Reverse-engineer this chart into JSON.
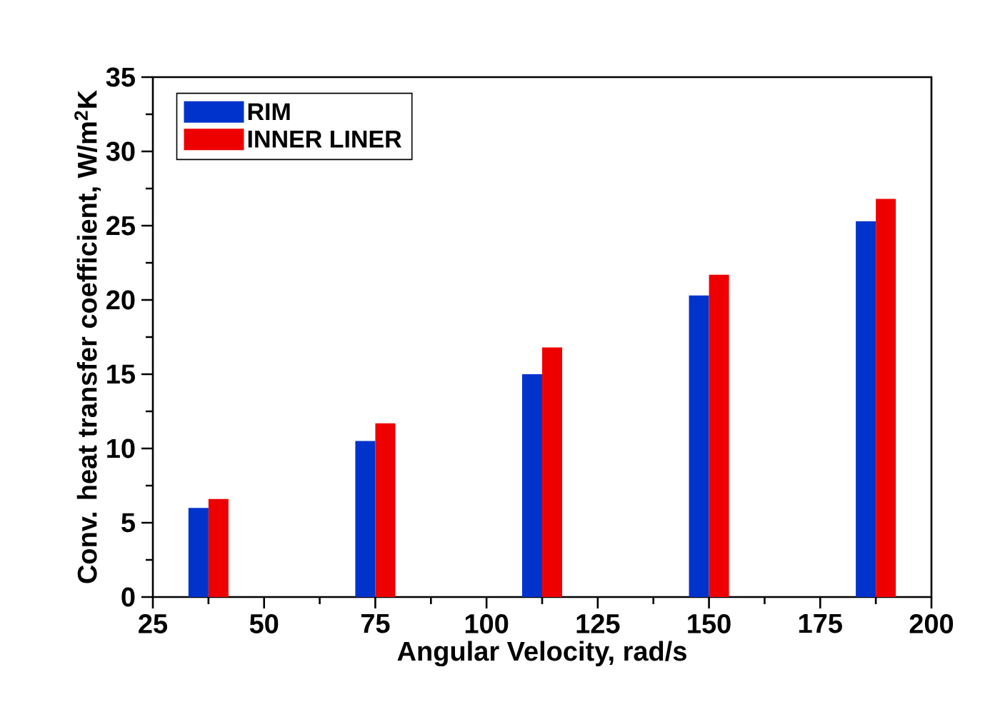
{
  "chart_data": {
    "type": "bar",
    "xlabel": "Angular Velocity, rad/s",
    "ylabel": "Conv. heat transfer coefficient, W/m$^{2}$K",
    "xlim": [
      25,
      200
    ],
    "ylim": [
      0,
      35
    ],
    "xticks": [
      25,
      50,
      75,
      100,
      125,
      150,
      175,
      200
    ],
    "yticks": [
      0,
      5,
      10,
      15,
      20,
      25,
      30,
      35
    ],
    "legend": "top left",
    "series": [
      {
        "name": "RIM",
        "color": "#0033cc",
        "x": [
          35.25,
          72.75,
          110.25,
          147.75,
          185.25
        ],
        "values": [
          6.0,
          10.5,
          15.0,
          20.3,
          25.3
        ]
      },
      {
        "name": "INNER LINER",
        "color": "#ee0000",
        "x": [
          39.75,
          77.25,
          114.75,
          152.25,
          189.75
        ],
        "values": [
          6.6,
          11.7,
          16.8,
          21.7,
          26.8
        ]
      }
    ]
  }
}
